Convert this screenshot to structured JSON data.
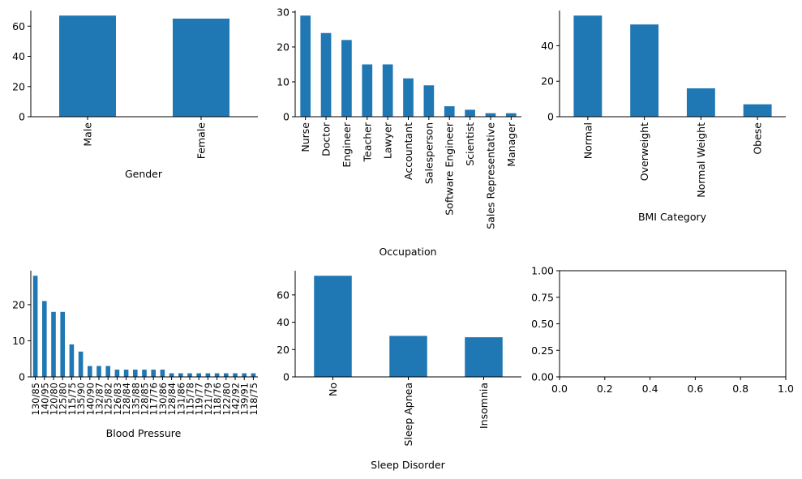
{
  "colors": {
    "bar": "#1f77b4",
    "axis": "#000000",
    "background": "#ffffff"
  },
  "chart_data": [
    {
      "type": "bar",
      "xlabel": "Gender",
      "ylabel": "",
      "categories": [
        "Male",
        "Female"
      ],
      "values": [
        67,
        65
      ],
      "ylim": [
        0,
        70.35
      ],
      "yticks": [
        0,
        20,
        40,
        60
      ]
    },
    {
      "type": "bar",
      "xlabel": "Occupation",
      "ylabel": "",
      "categories": [
        "Nurse",
        "Doctor",
        "Engineer",
        "Teacher",
        "Lawyer",
        "Accountant",
        "Salesperson",
        "Software Engineer",
        "Scientist",
        "Sales Representative",
        "Manager"
      ],
      "values": [
        29,
        24,
        22,
        15,
        15,
        11,
        9,
        3,
        2,
        1,
        1
      ],
      "ylim": [
        0,
        30.45
      ],
      "yticks": [
        0,
        10,
        20,
        30
      ]
    },
    {
      "type": "bar",
      "xlabel": "BMI Category",
      "ylabel": "",
      "categories": [
        "Normal",
        "Overweight",
        "Normal Weight",
        "Obese"
      ],
      "values": [
        57,
        52,
        16,
        7
      ],
      "ylim": [
        0,
        59.85
      ],
      "yticks": [
        0,
        20,
        40
      ]
    },
    {
      "type": "bar",
      "xlabel": "Blood Pressure",
      "ylabel": "",
      "categories": [
        "130/85",
        "140/95",
        "120/80",
        "125/80",
        "115/75",
        "135/90",
        "140/90",
        "132/87",
        "125/82",
        "126/83",
        "128/84",
        "135/88",
        "128/85",
        "117/76",
        "130/86",
        "128/84",
        "131/86",
        "115/78",
        "119/77",
        "121/79",
        "118/76",
        "122/80",
        "142/92",
        "139/91",
        "118/75"
      ],
      "values": [
        28,
        21,
        18,
        18,
        9,
        7,
        3,
        3,
        3,
        2,
        2,
        2,
        2,
        2,
        2,
        1,
        1,
        1,
        1,
        1,
        1,
        1,
        1,
        1,
        1
      ],
      "ylim": [
        0,
        29.4
      ],
      "yticks": [
        0,
        10,
        20
      ]
    },
    {
      "type": "bar",
      "xlabel": "Sleep Disorder",
      "ylabel": "",
      "categories": [
        "No",
        "Sleep Apnea",
        "Insomnia"
      ],
      "values": [
        74,
        30,
        29
      ],
      "ylim": [
        0,
        77.7
      ],
      "yticks": [
        0,
        20,
        40,
        60
      ]
    },
    {
      "type": "empty",
      "xlabel": "",
      "ylabel": "",
      "xlim": [
        0,
        1
      ],
      "ylim": [
        0,
        1
      ],
      "xticks": [
        "0.0",
        "0.2",
        "0.4",
        "0.6",
        "0.8",
        "1.0"
      ],
      "yticks": [
        "0.00",
        "0.25",
        "0.50",
        "0.75",
        "1.00"
      ]
    }
  ]
}
